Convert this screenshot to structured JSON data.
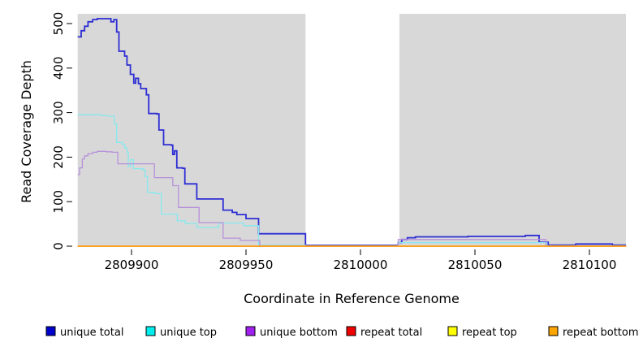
{
  "chart_data": {
    "type": "line",
    "title": "",
    "xlabel": "Coordinate in Reference Genome",
    "ylabel": "Read Coverage Depth",
    "x_ticks": [
      2809900,
      2809950,
      2810000,
      2810050,
      2810100
    ],
    "y_ticks": [
      0,
      100,
      200,
      300,
      400,
      500
    ],
    "x_range": [
      2809876.5,
      2810116
    ],
    "y_range": [
      0,
      522
    ],
    "grid": false,
    "legend_position": "bottom",
    "plot_background": "#d8d8d8",
    "gap_region": {
      "x_start": 2809976,
      "x_end": 2810017,
      "color": "#ffffff"
    },
    "series": [
      {
        "name": "unique total",
        "line_color": "#2d2dd4",
        "legend_color": "#0000cd",
        "line_width": 1.8,
        "points": [
          [
            2809876.5,
            470
          ],
          [
            2809878,
            484
          ],
          [
            2809879.5,
            494
          ],
          [
            2809881,
            504
          ],
          [
            2809883,
            509
          ],
          [
            2809885,
            511
          ],
          [
            2809891,
            504
          ],
          [
            2809892.3,
            509
          ],
          [
            2809893.5,
            481
          ],
          [
            2809894.5,
            438
          ],
          [
            2809897,
            427
          ],
          [
            2809898,
            407
          ],
          [
            2809899.5,
            386
          ],
          [
            2809901,
            366
          ],
          [
            2809901.8,
            377
          ],
          [
            2809903,
            365
          ],
          [
            2809904,
            354
          ],
          [
            2809906.5,
            340
          ],
          [
            2809907.5,
            298
          ],
          [
            2809911,
            297
          ],
          [
            2809912,
            261
          ],
          [
            2809914,
            228
          ],
          [
            2809917.3,
            227
          ],
          [
            2809918,
            206
          ],
          [
            2809918.8,
            214
          ],
          [
            2809919.8,
            176
          ],
          [
            2809922.3,
            175
          ],
          [
            2809923.3,
            140
          ],
          [
            2809928.5,
            106
          ],
          [
            2809940,
            81
          ],
          [
            2809944,
            76
          ],
          [
            2809946,
            71
          ],
          [
            2809950,
            62
          ],
          [
            2809955.5,
            28
          ],
          [
            2809976,
            2
          ],
          [
            2810016.5,
            8
          ],
          [
            2810018,
            15
          ],
          [
            2810020.5,
            19
          ],
          [
            2810024,
            21
          ],
          [
            2810047,
            22
          ],
          [
            2810072,
            24
          ],
          [
            2810078,
            9
          ],
          [
            2810082,
            2.5
          ],
          [
            2810094,
            5
          ],
          [
            2810110,
            2.5
          ],
          [
            2810116,
            2.5
          ]
        ]
      },
      {
        "name": "unique top",
        "line_color": "#86e9ee",
        "legend_color": "#00eeee",
        "line_width": 1.3,
        "points": [
          [
            2809876.5,
            295
          ],
          [
            2809887,
            293
          ],
          [
            2809890,
            292
          ],
          [
            2809892.5,
            274
          ],
          [
            2809893.5,
            233
          ],
          [
            2809896,
            229
          ],
          [
            2809897,
            221
          ],
          [
            2809898,
            211
          ],
          [
            2809898.6,
            179
          ],
          [
            2809899.6,
            194
          ],
          [
            2809900.8,
            174
          ],
          [
            2809905,
            171
          ],
          [
            2809906,
            156
          ],
          [
            2809907,
            121
          ],
          [
            2809910,
            118
          ],
          [
            2809913,
            72
          ],
          [
            2809920,
            57
          ],
          [
            2809923.5,
            51
          ],
          [
            2809928.5,
            42
          ],
          [
            2809938,
            52
          ],
          [
            2809949,
            46
          ],
          [
            2809955.5,
            2
          ],
          [
            2809976,
            1
          ],
          [
            2810016.5,
            8
          ],
          [
            2810078,
            8
          ],
          [
            2810081.5,
            1
          ],
          [
            2810116,
            1
          ]
        ]
      },
      {
        "name": "unique bottom",
        "line_color": "#b791da",
        "legend_color": "#a020f0",
        "line_width": 1.3,
        "points": [
          [
            2809876.5,
            161
          ],
          [
            2809877.3,
            176
          ],
          [
            2809878.5,
            196
          ],
          [
            2809879.5,
            203
          ],
          [
            2809881,
            208
          ],
          [
            2809883,
            211
          ],
          [
            2809885,
            213
          ],
          [
            2809889,
            212
          ],
          [
            2809891.5,
            211
          ],
          [
            2809894,
            185
          ],
          [
            2809910,
            154
          ],
          [
            2809918,
            136
          ],
          [
            2809920.5,
            87
          ],
          [
            2809929.5,
            53
          ],
          [
            2809940,
            18
          ],
          [
            2809947.5,
            13
          ],
          [
            2809956,
            1
          ],
          [
            2810016.5,
            15
          ],
          [
            2810078,
            15
          ],
          [
            2810081,
            1
          ],
          [
            2810116,
            1
          ]
        ]
      },
      {
        "name": "repeat total",
        "line_color": "#dd0000",
        "legend_color": "#ee0000",
        "line_width": 1.3,
        "points": [
          [
            2809876.5,
            0
          ],
          [
            2810116,
            0
          ]
        ]
      },
      {
        "name": "repeat top",
        "line_color": "#ffff00",
        "legend_color": "#ffff00",
        "line_width": 1.3,
        "points": [
          [
            2809876.5,
            0
          ],
          [
            2810116,
            0
          ]
        ]
      },
      {
        "name": "repeat bottom",
        "line_color": "#ffa019",
        "legend_color": "#ffa500",
        "line_width": 1.8,
        "points": [
          [
            2809876.5,
            0
          ],
          [
            2810116,
            0
          ]
        ]
      }
    ]
  }
}
